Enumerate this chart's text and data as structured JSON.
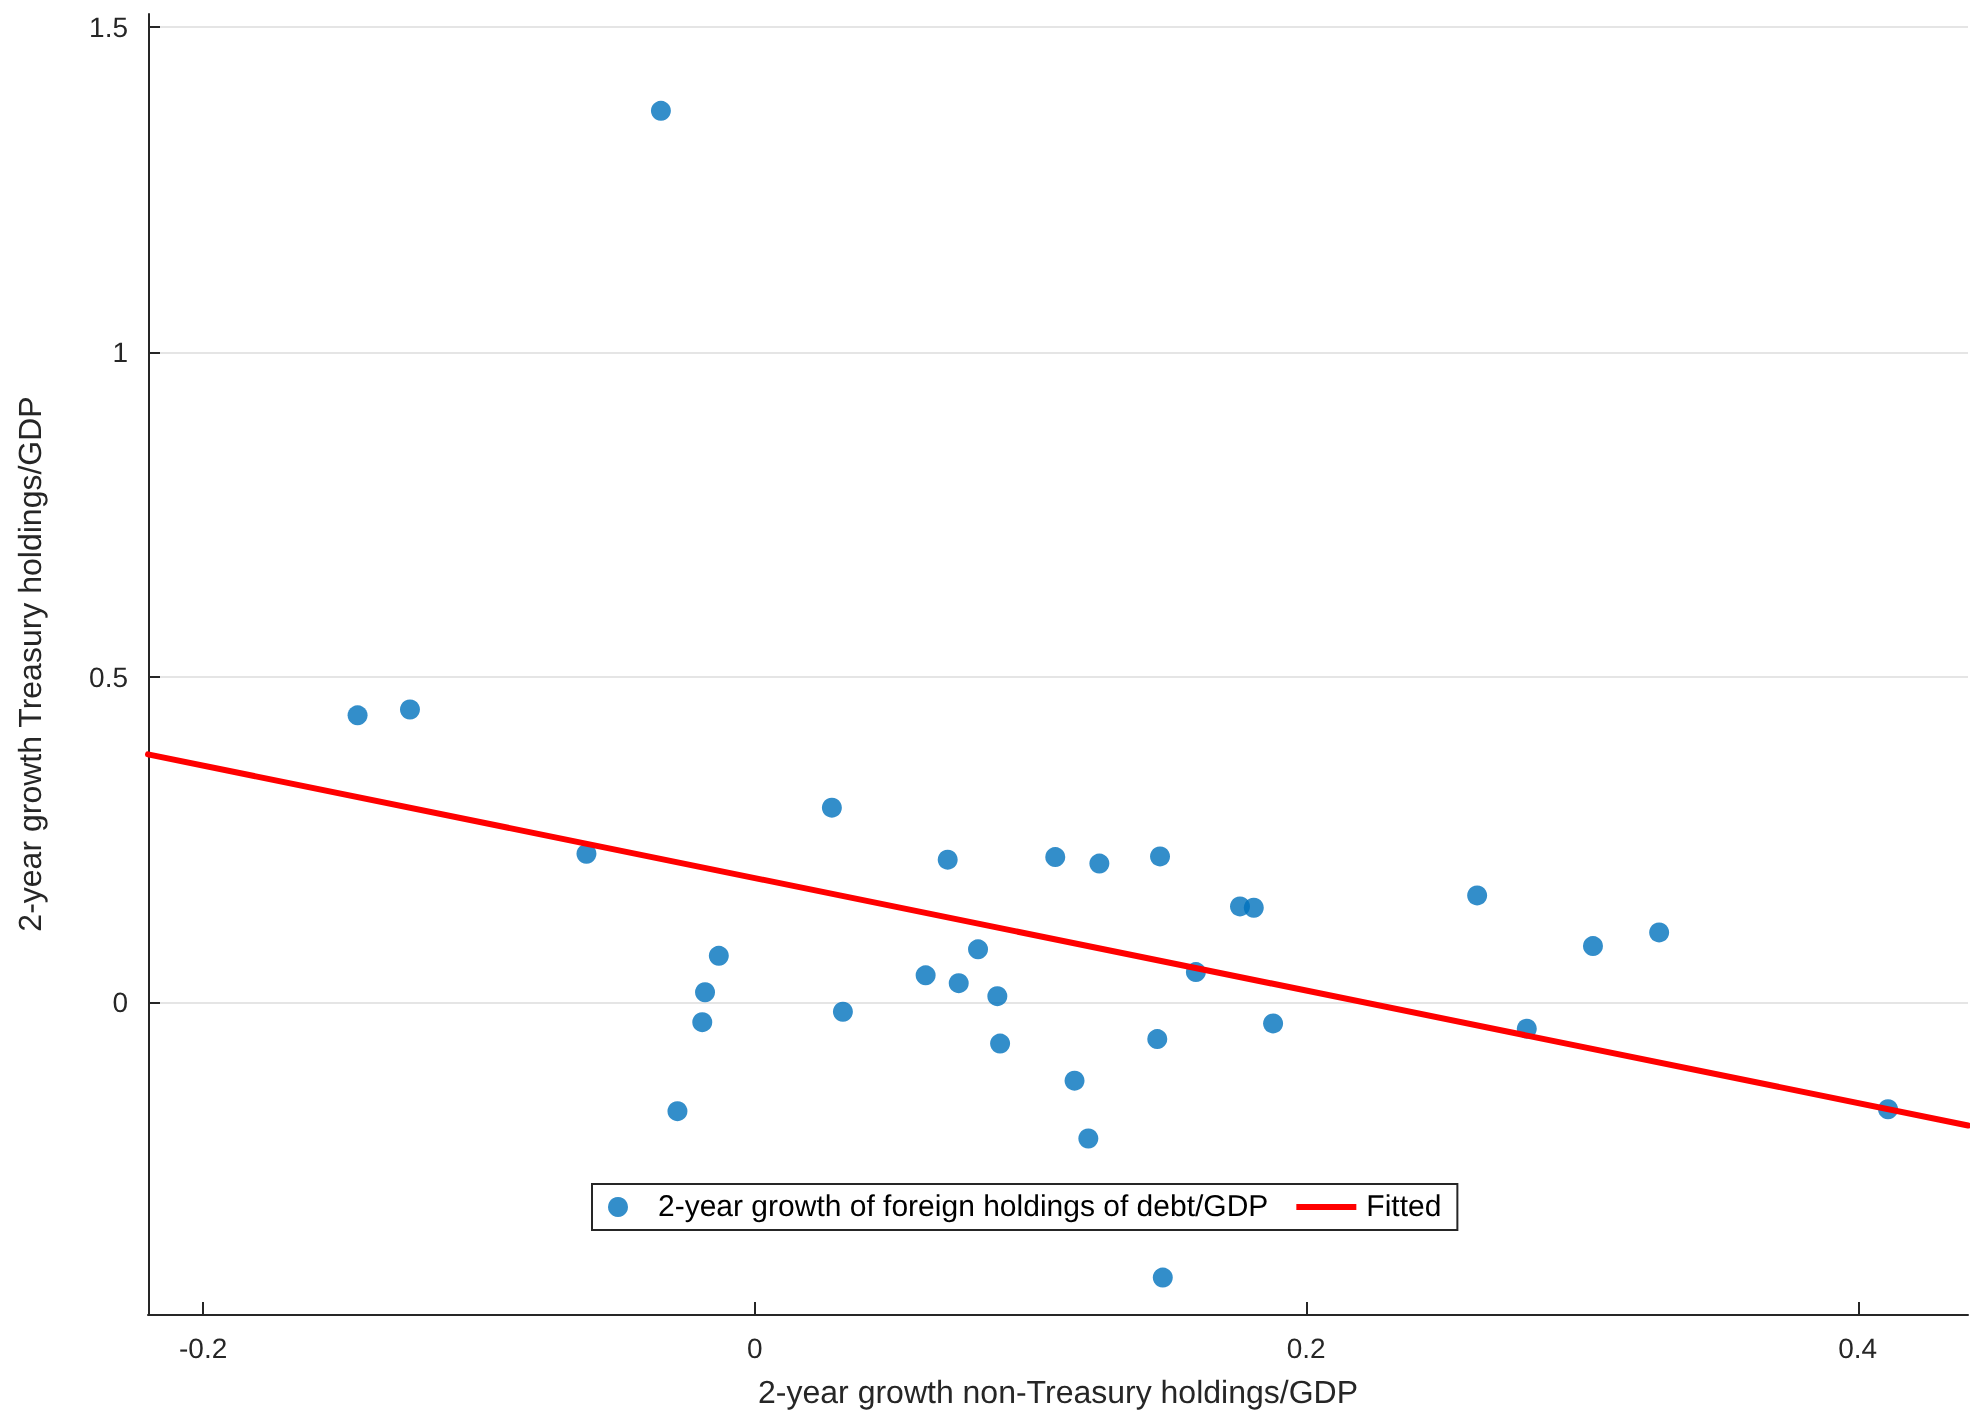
{
  "chart_data": {
    "type": "scatter",
    "xlabel": "2-year growth non-Treasury holdings/GDP",
    "ylabel": "2-year growth Treasury holdings/GDP",
    "xlim": [
      -0.22,
      0.44
    ],
    "ylim": [
      -0.48,
      1.52
    ],
    "xticks": [
      -0.2,
      0,
      0.2,
      0.4
    ],
    "yticks": [
      0,
      0.5,
      1,
      1.5
    ],
    "grid": "y",
    "legend": "bottom",
    "series": [
      {
        "name": "2-year growth of foreign holdings of debt/GDP",
        "marker": "circle",
        "color": "#0072bd",
        "x": [
          -0.034,
          -0.144,
          -0.125,
          -0.061,
          0.028,
          0.07,
          0.109,
          0.125,
          0.147,
          -0.013,
          -0.018,
          -0.019,
          -0.028,
          0.032,
          0.062,
          0.074,
          0.081,
          0.088,
          0.089,
          0.116,
          0.121,
          0.146,
          0.148,
          0.16,
          0.188,
          0.176,
          0.181,
          0.262,
          0.28,
          0.304,
          0.328,
          0.411
        ],
        "values": [
          1.371,
          0.441,
          0.45,
          0.228,
          0.299,
          0.219,
          0.223,
          0.213,
          0.224,
          0.071,
          0.015,
          -0.031,
          -0.168,
          -0.015,
          0.041,
          0.029,
          0.081,
          0.009,
          -0.064,
          -0.121,
          -0.21,
          -0.057,
          -0.424,
          0.046,
          -0.033,
          0.147,
          0.145,
          0.164,
          -0.041,
          0.086,
          0.107,
          -0.165
        ]
      },
      {
        "name": "Fitted",
        "type": "line",
        "marker": "none",
        "line_style": "solid",
        "color": "#ff0000",
        "x": [
          -0.22,
          0.44
        ],
        "values": [
          0.381,
          -0.19
        ]
      }
    ]
  }
}
